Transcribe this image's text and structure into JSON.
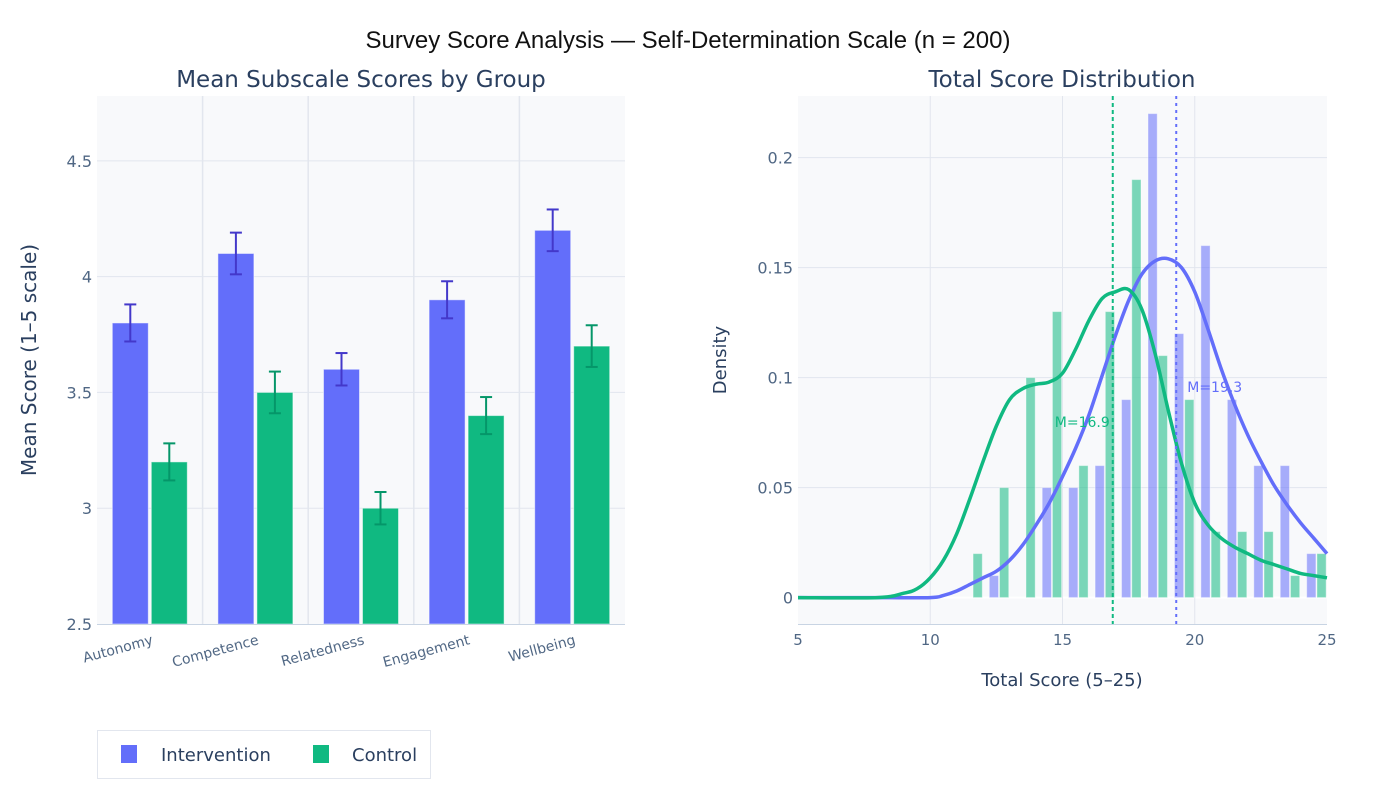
{
  "title": "Survey Score Analysis — Self-Determination Scale (n = 200)",
  "colors": {
    "intervention": "#636efa",
    "intervention_err": "#4338ca",
    "control": "#10b981",
    "control_err": "#059669",
    "plot_bg": "#f8f9fb",
    "grid": "#e2e6ee",
    "axis_line": "#c8d4e3"
  },
  "legend": {
    "items": [
      {
        "label": "Intervention",
        "color": "#636efa"
      },
      {
        "label": "Control",
        "color": "#10b981"
      }
    ],
    "placement": "bottom-left"
  },
  "chart_data": [
    {
      "type": "bar",
      "title": "Mean Subscale Scores by Group",
      "xlabel": "",
      "ylabel": "Mean Score (1–5 scale)",
      "ylim": [
        2.5,
        4.78
      ],
      "yticks": [
        2.5,
        3,
        3.5,
        4,
        4.5
      ],
      "ytick_labels": [
        "2.5",
        "3",
        "3.5",
        "4",
        "4.5"
      ],
      "categories": [
        "Autonomy",
        "Competence",
        "Relatedness",
        "Engagement",
        "Wellbeing"
      ],
      "series": [
        {
          "name": "Intervention",
          "values": [
            3.8,
            4.1,
            3.6,
            3.9,
            4.2
          ],
          "error": [
            0.08,
            0.09,
            0.07,
            0.08,
            0.09
          ]
        },
        {
          "name": "Control",
          "values": [
            3.2,
            3.5,
            3.0,
            3.4,
            3.7
          ],
          "error": [
            0.08,
            0.09,
            0.07,
            0.08,
            0.09
          ]
        }
      ],
      "grid": true
    },
    {
      "type": "histogram",
      "title": "Total Score Distribution",
      "xlabel": "Total Score (5–25)",
      "ylabel": "Density",
      "xlim": [
        5,
        25
      ],
      "ylim": [
        -0.012,
        0.228
      ],
      "xticks": [
        5,
        10,
        15,
        20,
        25
      ],
      "xtick_labels": [
        "5",
        "10",
        "15",
        "20",
        "25"
      ],
      "yticks": [
        0,
        0.05,
        0.1,
        0.15,
        0.2
      ],
      "ytick_labels": [
        "0",
        "0.05",
        "0.1",
        "0.15",
        "0.2"
      ],
      "bin_starts": [
        11.1,
        12.1,
        13.1,
        14.1,
        15.1,
        16.1,
        17.1,
        18.1,
        19.1,
        20.1,
        21.1,
        22.1,
        23.1,
        24.1
      ],
      "bin_width": 1,
      "series": [
        {
          "name": "Intervention",
          "density": [
            0,
            0.01,
            0,
            0.05,
            0.05,
            0.06,
            0.09,
            0.22,
            0.12,
            0.16,
            0.09,
            0.06,
            0.06,
            0.02
          ]
        },
        {
          "name": "Control",
          "density": [
            0.02,
            0.05,
            0.1,
            0.13,
            0.06,
            0.13,
            0.19,
            0.11,
            0.09,
            0.03,
            0.03,
            0.03,
            0.01,
            0.02
          ]
        }
      ],
      "kde": [
        {
          "name": "Intervention",
          "x": [
            5,
            8,
            10,
            10.5,
            11,
            11.5,
            12,
            12.5,
            13,
            13.5,
            14,
            14.5,
            15,
            15.5,
            16,
            16.5,
            17,
            17.5,
            18,
            18.5,
            19,
            19.5,
            20,
            20.5,
            21,
            21.5,
            22,
            22.5,
            23,
            23.5,
            24,
            24.5,
            25
          ],
          "y": [
            0,
            0,
            0,
            0.001,
            0.003,
            0.006,
            0.009,
            0.012,
            0.017,
            0.024,
            0.033,
            0.043,
            0.055,
            0.068,
            0.083,
            0.101,
            0.119,
            0.135,
            0.147,
            0.153,
            0.154,
            0.15,
            0.139,
            0.122,
            0.104,
            0.088,
            0.074,
            0.062,
            0.051,
            0.042,
            0.034,
            0.027,
            0.02
          ]
        },
        {
          "name": "Control",
          "x": [
            5,
            8,
            9,
            9.5,
            10,
            10.5,
            11,
            11.5,
            12,
            12.5,
            13,
            13.5,
            14,
            14.5,
            15,
            15.5,
            16,
            16.5,
            17,
            17.5,
            18,
            18.5,
            19,
            19.5,
            20,
            20.5,
            21,
            21.5,
            22,
            22.5,
            23,
            23.5,
            24,
            24.5,
            25
          ],
          "y": [
            0,
            0,
            0.002,
            0.004,
            0.009,
            0.017,
            0.029,
            0.045,
            0.062,
            0.078,
            0.09,
            0.095,
            0.097,
            0.098,
            0.102,
            0.113,
            0.126,
            0.136,
            0.139,
            0.14,
            0.131,
            0.111,
            0.085,
            0.061,
            0.043,
            0.033,
            0.027,
            0.023,
            0.02,
            0.017,
            0.015,
            0.013,
            0.011,
            0.01,
            0.009
          ]
        }
      ],
      "mean_lines": [
        {
          "name": "Control",
          "x": 16.9,
          "label": "M=16.9",
          "style": "dashed"
        },
        {
          "name": "Intervention",
          "x": 19.3,
          "label": "M=19.3",
          "style": "dotted"
        }
      ],
      "grid": true
    }
  ]
}
